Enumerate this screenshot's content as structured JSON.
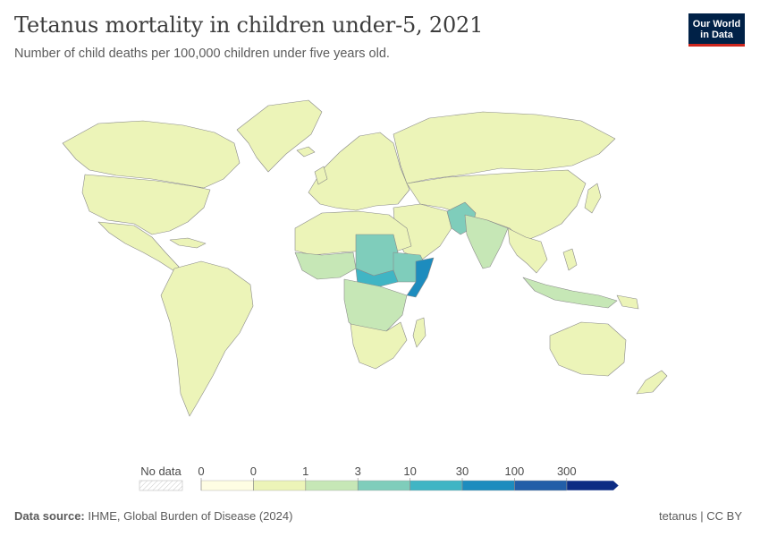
{
  "header": {
    "title": "Tetanus mortality in children under-5, 2021",
    "subtitle": "Number of child deaths per 100,000 children under five years old."
  },
  "logo": {
    "line1": "Our World",
    "line2": "in Data"
  },
  "chart_data": {
    "type": "choropleth",
    "title": "Tetanus mortality in children under-5, 2021",
    "subtitle": "Number of child deaths per 100,000 children under five years old.",
    "year": 2021,
    "legend": {
      "no_data_label": "No data",
      "tick_labels": [
        "0",
        "0",
        "1",
        "3",
        "10",
        "30",
        "100",
        "300"
      ],
      "bin_colors": [
        "#fefde3",
        "#ecf4b8",
        "#c6e7b6",
        "#7fcdbb",
        "#40b5c4",
        "#1d8cbe",
        "#225ea8",
        "#0c2c84"
      ],
      "placement": "bottom-center"
    },
    "highlighted_regions": [
      {
        "region": "Ethiopia / Somalia",
        "color": "#40b5c4"
      },
      {
        "region": "South Sudan / Central Africa",
        "color": "#7fcdbb"
      },
      {
        "region": "Pakistan",
        "color": "#7fcdbb"
      },
      {
        "region": "Central Africa & India",
        "color": "#c6e7b6"
      },
      {
        "region": "Somalia coast",
        "color": "#1d8cbe"
      }
    ]
  },
  "footer": {
    "source_label": "Data source:",
    "source_value": "IHME, Global Burden of Disease (2024)",
    "right_text": "tetanus | CC BY"
  }
}
